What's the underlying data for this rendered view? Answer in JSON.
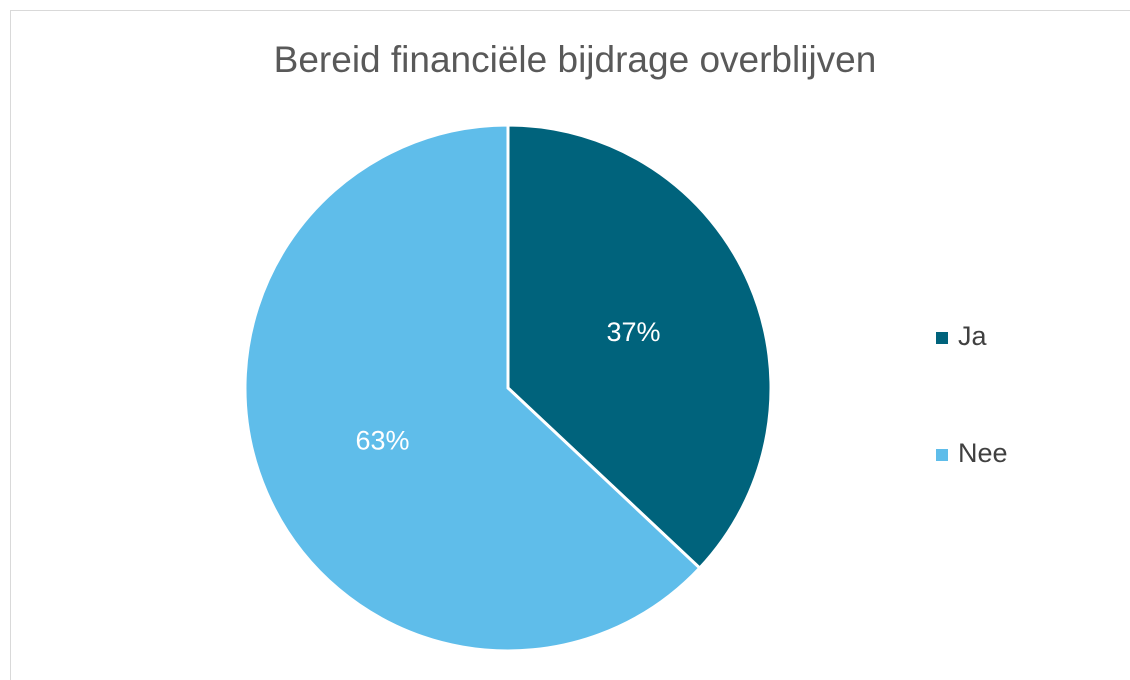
{
  "chart_data": {
    "type": "pie",
    "title": "Bereid financiële bijdrage overblijven",
    "categories": [
      "Ja",
      "Nee"
    ],
    "values": [
      37,
      63
    ],
    "value_labels": [
      "37%",
      "63%"
    ],
    "colors": [
      "#00637c",
      "#5fbdea"
    ],
    "legend": "right"
  }
}
